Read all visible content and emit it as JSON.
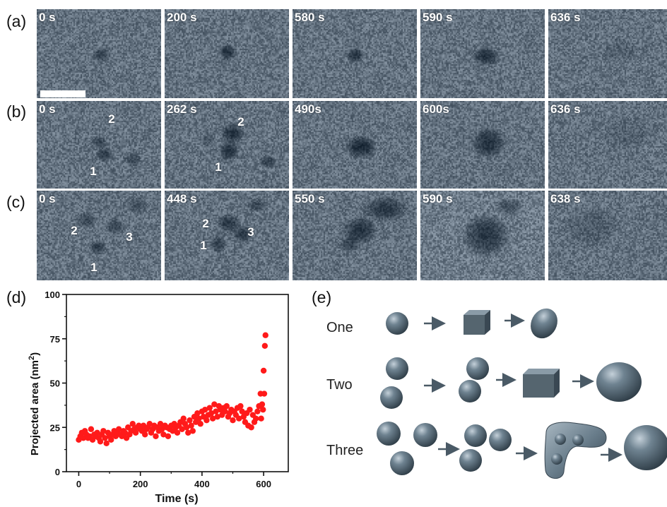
{
  "panel_labels": {
    "a": "(a)",
    "b": "(b)",
    "c": "(c)",
    "d": "(d)",
    "e": "(e)"
  },
  "rows": [
    {
      "times": [
        "0 s",
        "200 s",
        "580 s",
        "590 s",
        "636 s"
      ]
    },
    {
      "times": [
        "0 s",
        "262 s",
        "490s",
        "600s",
        "636 s"
      ]
    },
    {
      "times": [
        "0 s",
        "448 s",
        "550 s",
        "590 s",
        "638 s"
      ]
    }
  ],
  "particle_numbers": {
    "b0": [
      "2",
      "1"
    ],
    "b1": [
      "2",
      "1"
    ],
    "c0": [
      "2",
      "3",
      "1"
    ],
    "c1": [
      "2",
      "3",
      "1"
    ]
  },
  "colors": {
    "points": "#ff1a1a",
    "particle": "#4c5e6b",
    "arrow": "#4a5a66"
  },
  "chart_data": {
    "type": "scatter",
    "title": "",
    "xlabel": "Time (s)",
    "ylabel_main": "Projected area (nm",
    "ylabel_sup": "2",
    "ylabel_close": ")",
    "xlim": [
      -40,
      680
    ],
    "ylim": [
      0,
      100
    ],
    "xticks": [
      0,
      200,
      400,
      600
    ],
    "yticks": [
      0,
      25,
      50,
      75,
      100
    ],
    "grid": false,
    "x": [
      0,
      5,
      10,
      15,
      20,
      25,
      30,
      35,
      40,
      45,
      50,
      55,
      60,
      65,
      70,
      75,
      80,
      85,
      90,
      95,
      100,
      105,
      110,
      115,
      120,
      125,
      130,
      135,
      140,
      145,
      150,
      155,
      160,
      165,
      170,
      175,
      180,
      185,
      190,
      195,
      200,
      205,
      210,
      215,
      220,
      225,
      230,
      235,
      240,
      245,
      250,
      255,
      260,
      265,
      270,
      275,
      280,
      285,
      290,
      295,
      300,
      305,
      310,
      315,
      320,
      325,
      330,
      335,
      340,
      345,
      350,
      355,
      360,
      365,
      370,
      375,
      380,
      385,
      390,
      395,
      400,
      405,
      410,
      415,
      420,
      425,
      430,
      435,
      440,
      445,
      450,
      455,
      460,
      465,
      470,
      475,
      480,
      485,
      490,
      495,
      500,
      505,
      510,
      515,
      520,
      525,
      530,
      535,
      540,
      545,
      550,
      555,
      560,
      565,
      570,
      575,
      580,
      585,
      590,
      592,
      595,
      598,
      600,
      602,
      604,
      606
    ],
    "y": [
      18,
      20,
      22,
      19,
      23,
      21,
      19,
      20,
      24,
      18,
      21,
      20,
      22,
      19,
      17,
      21,
      23,
      19,
      16,
      22,
      20,
      18,
      21,
      23,
      20,
      22,
      24,
      21,
      20,
      23,
      22,
      19,
      25,
      21,
      23,
      27,
      24,
      22,
      25,
      26,
      24,
      23,
      26,
      21,
      24,
      25,
      27,
      22,
      24,
      26,
      20,
      25,
      23,
      27,
      24,
      21,
      26,
      25,
      20,
      24,
      26,
      23,
      27,
      25,
      22,
      26,
      28,
      24,
      30,
      27,
      25,
      22,
      29,
      26,
      23,
      31,
      28,
      33,
      30,
      27,
      34,
      31,
      35,
      29,
      32,
      36,
      33,
      30,
      38,
      34,
      31,
      37,
      35,
      32,
      36,
      34,
      37,
      31,
      33,
      35,
      29,
      34,
      32,
      36,
      30,
      37,
      34,
      31,
      28,
      33,
      26,
      35,
      25,
      32,
      28,
      30,
      34,
      37,
      44,
      30,
      38,
      35,
      57,
      44,
      71,
      77
    ]
  },
  "schematic": {
    "rows": [
      {
        "label": "One"
      },
      {
        "label": "Two"
      },
      {
        "label": "Three"
      }
    ]
  }
}
